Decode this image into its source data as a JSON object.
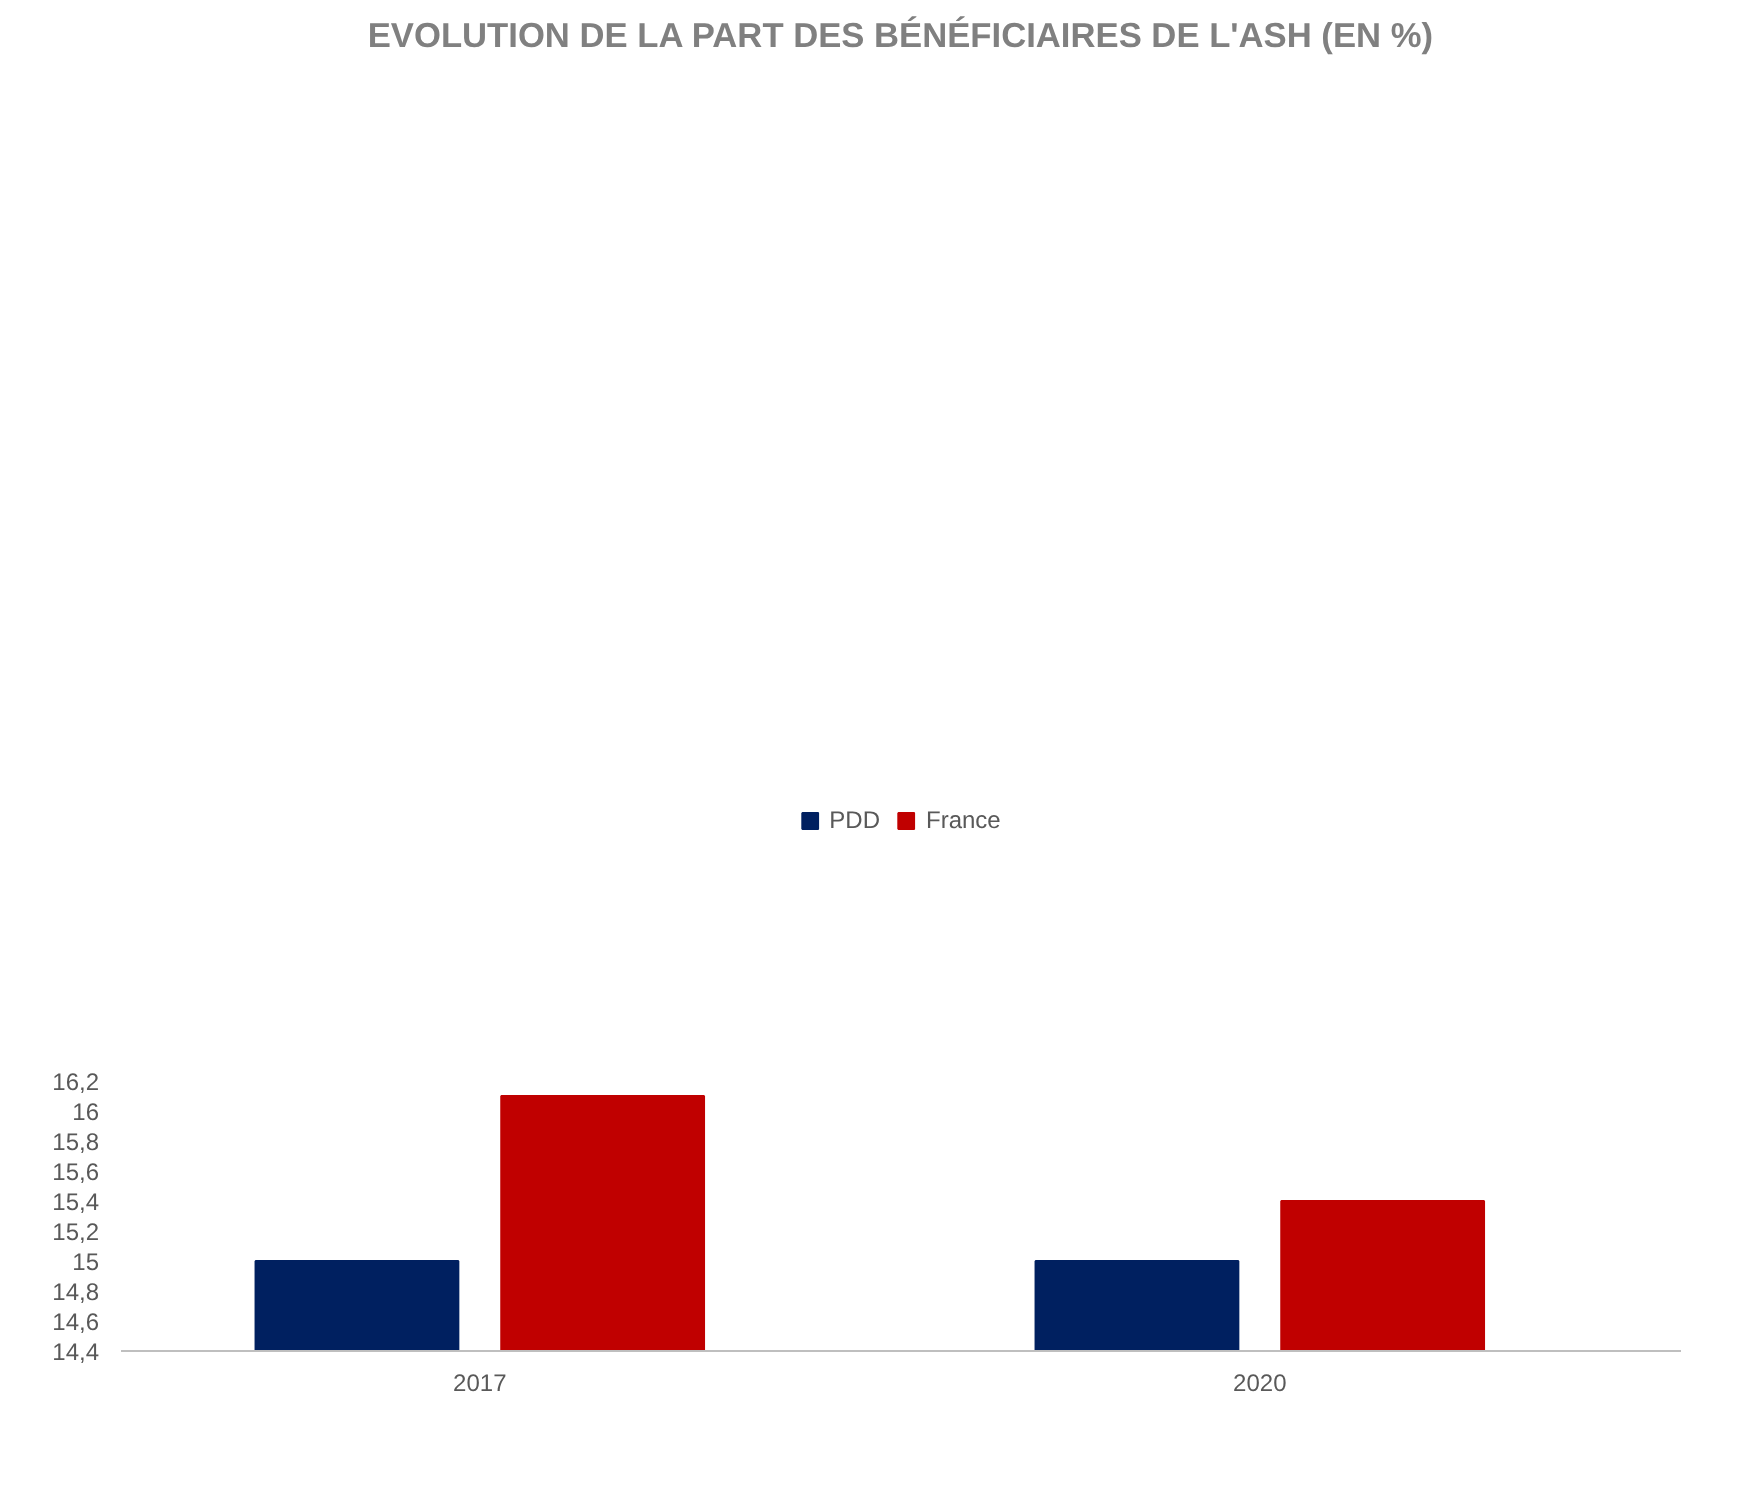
{
  "chart_data": {
    "type": "bar",
    "title": "EVOLUTION DE LA PART DES BÉNÉFICIAIRES DE L'ASH (EN %)",
    "categories": [
      "2017",
      "2020"
    ],
    "series": [
      {
        "name": "PDD",
        "color": "#002060",
        "values": [
          15,
          15
        ]
      },
      {
        "name": "France",
        "color": "#c00000",
        "values": [
          16.1,
          15.4
        ]
      }
    ],
    "ylim": [
      14.4,
      16.2
    ],
    "yticks": [
      {
        "value": 14.4,
        "label": "14,4"
      },
      {
        "value": 14.6,
        "label": "14,6"
      },
      {
        "value": 14.8,
        "label": "14,8"
      },
      15,
      {
        "value": 15.2,
        "label": "15,2"
      },
      {
        "value": 15.4,
        "label": "15,4"
      },
      {
        "value": 15.6,
        "label": "15,6"
      },
      {
        "value": 15.8,
        "label": "15,8"
      },
      16,
      {
        "value": 16.2,
        "label": "16,2"
      }
    ],
    "grid": false,
    "legend": "top"
  }
}
